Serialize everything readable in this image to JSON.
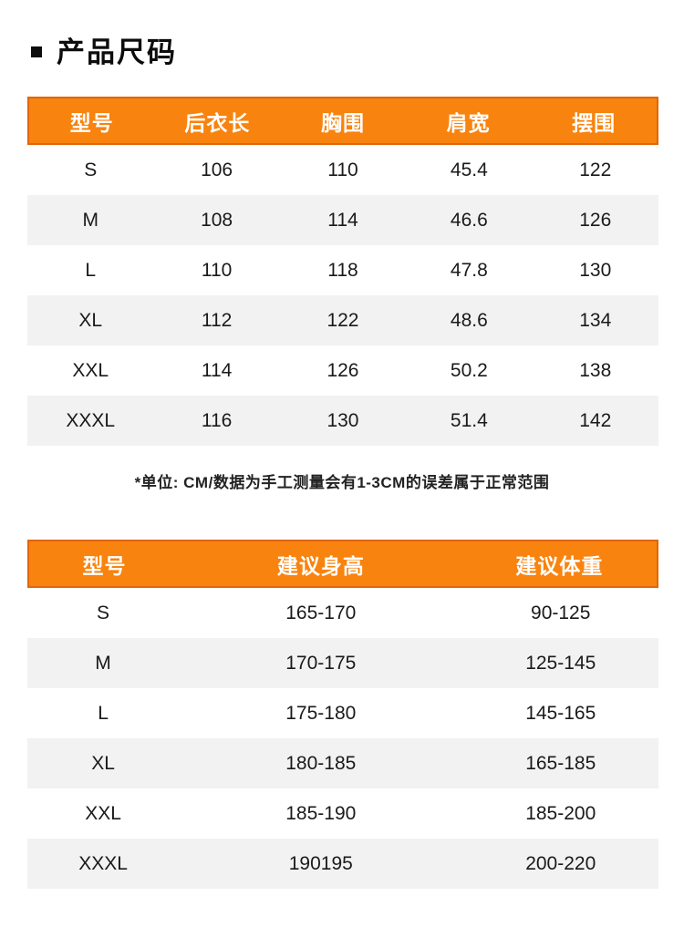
{
  "page": {
    "title": "产品尺码"
  },
  "colors": {
    "header_bg": "#F8830E",
    "header_border": "#E1660A",
    "header_text": "#FFFFFF",
    "row_alt_bg": "#F2F2F2",
    "row_text": "#1A1A1A",
    "title_text": "#0D0D0D"
  },
  "size_table": {
    "columns": [
      "型号",
      "后衣长",
      "胸围",
      "肩宽",
      "摆围"
    ],
    "column_widths": [
      "20%",
      "20%",
      "20%",
      "20%",
      "20%"
    ],
    "rows": [
      [
        "S",
        "106",
        "110",
        "45.4",
        "122"
      ],
      [
        "M",
        "108",
        "114",
        "46.6",
        "126"
      ],
      [
        "L",
        "110",
        "118",
        "47.8",
        "130"
      ],
      [
        "XL",
        "112",
        "122",
        "48.6",
        "134"
      ],
      [
        "XXL",
        "114",
        "126",
        "50.2",
        "138"
      ],
      [
        "XXXL",
        "116",
        "130",
        "51.4",
        "142"
      ]
    ],
    "note": "*单位: CM/数据为手工测量会有1-3CM的误差属于正常范围"
  },
  "recommend_table": {
    "columns": [
      "型号",
      "建议身高",
      "建议体重"
    ],
    "column_widths": [
      "24%",
      "45%",
      "31%"
    ],
    "rows": [
      [
        "S",
        "165-170",
        "90-125"
      ],
      [
        "M",
        "170-175",
        "125-145"
      ],
      [
        "L",
        "175-180",
        "145-165"
      ],
      [
        "XL",
        "180-185",
        "165-185"
      ],
      [
        "XXL",
        "185-190",
        "185-200"
      ],
      [
        "XXXL",
        "190195",
        "200-220"
      ]
    ]
  }
}
